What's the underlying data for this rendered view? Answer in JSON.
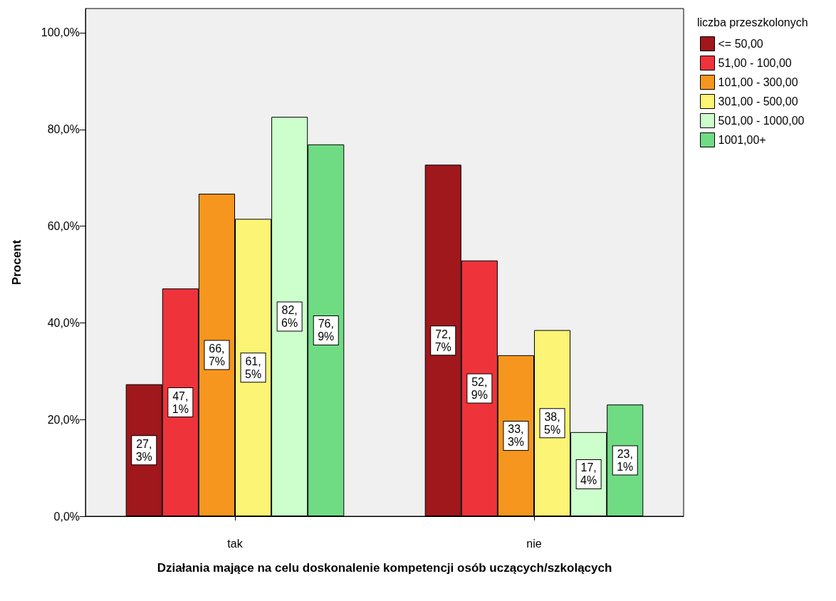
{
  "chart_data": {
    "type": "bar",
    "xlabel": "Działania mające na celu doskonalenie kompetencji osób uczących/szkolących",
    "ylabel": "Procent",
    "legend_title": "liczba przeszkolonych",
    "categories": [
      "tak",
      "nie"
    ],
    "series": [
      {
        "name": "<= 50,00",
        "color": "#a0171c",
        "values": [
          27.3,
          72.7
        ],
        "value_labels": [
          "27,3%",
          "72,7%"
        ]
      },
      {
        "name": "51,00 - 100,00",
        "color": "#ee333b",
        "values": [
          47.1,
          52.9
        ],
        "value_labels": [
          "47,1%",
          "52,9%"
        ]
      },
      {
        "name": "101,00 - 300,00",
        "color": "#f7961e",
        "values": [
          66.7,
          33.3
        ],
        "value_labels": [
          "66,7%",
          "33,3%"
        ]
      },
      {
        "name": "301,00 - 500,00",
        "color": "#fbf474",
        "values": [
          61.5,
          38.5
        ],
        "value_labels": [
          "61,5%",
          "38,5%"
        ]
      },
      {
        "name": "501,00 - 1000,00",
        "color": "#ccffcc",
        "values": [
          82.6,
          17.4
        ],
        "value_labels": [
          "82,6%",
          "17,4%"
        ]
      },
      {
        "name": "1001,00+",
        "color": "#6fdc84",
        "values": [
          76.9,
          23.1
        ],
        "value_labels": [
          "76,9%",
          "23,1%"
        ]
      }
    ],
    "ylim": [
      0,
      105
    ],
    "yticks": [
      {
        "value": 0,
        "label": "0,0%"
      },
      {
        "value": 20,
        "label": "20,0%"
      },
      {
        "value": 40,
        "label": "40,0%"
      },
      {
        "value": 60,
        "label": "60,0%"
      },
      {
        "value": 80,
        "label": "80,0%"
      },
      {
        "value": 100,
        "label": "100,0%"
      }
    ],
    "grid": false,
    "legend": "top right"
  }
}
